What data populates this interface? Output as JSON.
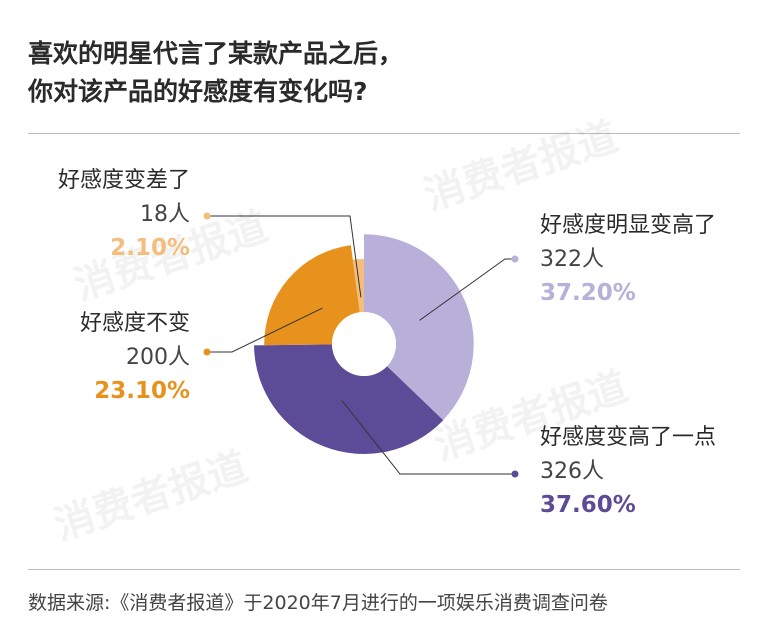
{
  "title": [
    "喜欢的明星代言了某款产品之后，",
    "你对该产品的好感度有变化吗?"
  ],
  "source": "数据来源:《消费者报道》于2020年7月进行的一项娱乐消费调查问卷",
  "watermark": "消费者报道",
  "chart_data": {
    "type": "pie",
    "style": "rose-donut",
    "slices": [
      {
        "label": "好感度明显变高了",
        "count": "322人",
        "percent": "37.20%",
        "value": 37.2,
        "color": "#b8b0d9"
      },
      {
        "label": "好感度变高了一点",
        "count": "326人",
        "percent": "37.60%",
        "value": 37.6,
        "color": "#5c4b96"
      },
      {
        "label": "好感度不变",
        "count": "200人",
        "percent": "23.10%",
        "value": 23.1,
        "color": "#e8921e"
      },
      {
        "label": "好感度变差了",
        "count": "18人",
        "percent": "2.10%",
        "value": 2.1,
        "color": "#f4bd7c"
      }
    ]
  }
}
